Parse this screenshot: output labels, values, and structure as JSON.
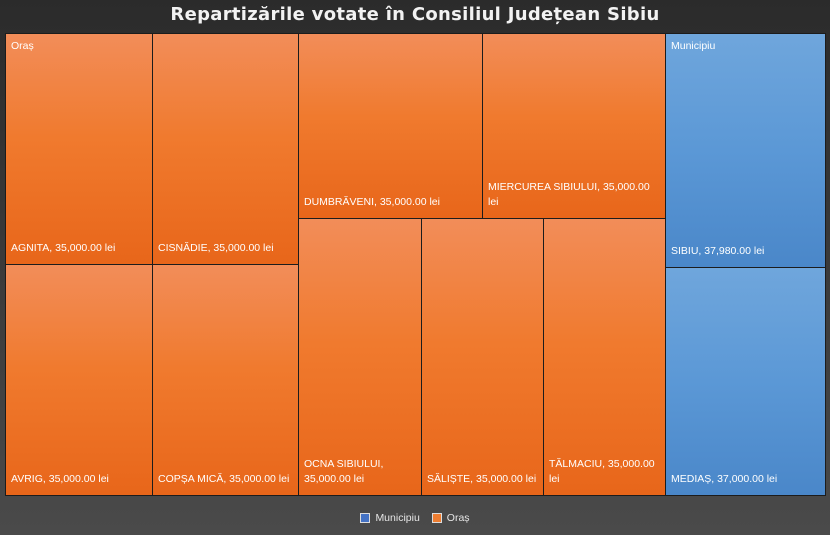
{
  "chart_data": {
    "type": "treemap",
    "title": "Repartizările votate în Consiliul Județean Sibiu",
    "value_suffix": " lei",
    "groups": [
      {
        "name": "Oraș",
        "color": "#ED7D31",
        "items": [
          {
            "name": "AGNITA",
            "value": 35000.0,
            "label": "AGNITA, 35,000.00 lei"
          },
          {
            "name": "AVRIG",
            "value": 35000.0,
            "label": "AVRIG, 35,000.00 lei"
          },
          {
            "name": "CISNĂDIE",
            "value": 35000.0,
            "label": "CISNĂDIE, 35,000.00 lei"
          },
          {
            "name": "COPȘA MICĂ",
            "value": 35000.0,
            "label": "COPȘA MICĂ, 35,000.00 lei"
          },
          {
            "name": "DUMBRĂVENI",
            "value": 35000.0,
            "label": "DUMBRĂVENI, 35,000.00 lei"
          },
          {
            "name": "MIERCUREA SIBIULUI",
            "value": 35000.0,
            "label": "MIERCUREA SIBIULUI, 35,000.00 lei"
          },
          {
            "name": "OCNA SIBIULUI",
            "value": 35000.0,
            "label": "OCNA SIBIULUI, 35,000.00 lei"
          },
          {
            "name": "SĂLIȘTE",
            "value": 35000.0,
            "label": "SĂLIȘTE, 35,000.00 lei"
          },
          {
            "name": "TĂLMACIU",
            "value": 35000.0,
            "label": "TĂLMACIU, 35,000.00 lei"
          }
        ]
      },
      {
        "name": "Municipiu",
        "color": "#5B9BD5",
        "items": [
          {
            "name": "SIBIU",
            "value": 37980.0,
            "label": "SIBIU, 37,980.00 lei"
          },
          {
            "name": "MEDIAȘ",
            "value": 37000.0,
            "label": "MEDIAȘ, 37,000.00 lei"
          }
        ]
      }
    ],
    "legend": {
      "position": "bottom",
      "entries": [
        {
          "name": "Municipiu",
          "color": "#4472C4"
        },
        {
          "name": "Oraș",
          "color": "#ED7D31"
        }
      ]
    }
  }
}
